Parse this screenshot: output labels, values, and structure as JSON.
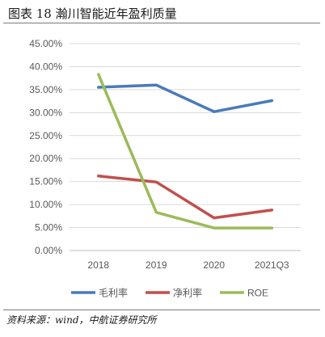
{
  "title": "图表 18 瀚川智能近年盈利质量",
  "source": "资料来源：wind，中航证券研究所",
  "chart_data": {
    "type": "line",
    "categories": [
      "2018",
      "2019",
      "2020",
      "2021Q3"
    ],
    "ylim": [
      0,
      45
    ],
    "y_ticks": [
      0,
      5,
      10,
      15,
      20,
      25,
      30,
      35,
      40,
      45
    ],
    "y_tick_labels": [
      "0.00%",
      "5.00%",
      "10.00%",
      "15.00%",
      "20.00%",
      "25.00%",
      "30.00%",
      "35.00%",
      "40.00%",
      "45.00%"
    ],
    "grid": true,
    "legend_position": "bottom",
    "series": [
      {
        "name": "毛利率",
        "color": "#4a7ab9",
        "values": [
          35.5,
          36.0,
          30.2,
          32.6
        ]
      },
      {
        "name": "净利率",
        "color": "#c0504d",
        "values": [
          16.2,
          14.9,
          7.1,
          8.8
        ]
      },
      {
        "name": "ROE",
        "color": "#9bbb59",
        "values": [
          38.3,
          8.3,
          4.9,
          4.9
        ]
      }
    ]
  }
}
